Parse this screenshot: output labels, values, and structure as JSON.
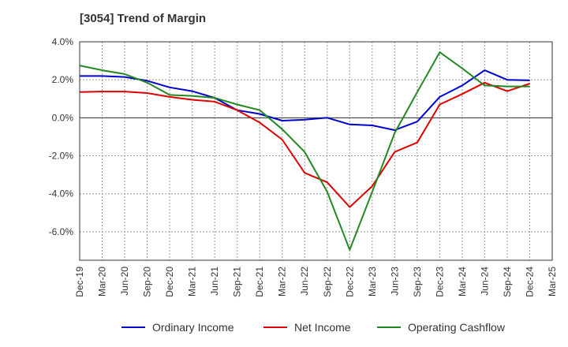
{
  "chart_data": {
    "type": "line",
    "title": "[3054]  Trend of Margin",
    "xlabel": "",
    "ylabel": "",
    "x": [
      "Dec-19",
      "Mar-20",
      "Jun-20",
      "Sep-20",
      "Dec-20",
      "Mar-21",
      "Jun-21",
      "Sep-21",
      "Dec-21",
      "Mar-22",
      "Jun-22",
      "Sep-22",
      "Dec-22",
      "Mar-23",
      "Jun-23",
      "Sep-23",
      "Dec-23",
      "Mar-24",
      "Jun-24",
      "Sep-24",
      "Dec-24",
      "Mar-25"
    ],
    "ylim": [
      -7.5,
      4.0
    ],
    "yticks": [
      4.0,
      2.0,
      0.0,
      -2.0,
      -4.0,
      -6.0
    ],
    "ytick_labels": [
      "4.0%",
      "2.0%",
      "0.0%",
      "-2.0%",
      "-4.0%",
      "-6.0%"
    ],
    "grid": true,
    "legend_position": "bottom",
    "series": [
      {
        "name": "Ordinary Income",
        "color": "#0000cc",
        "values": [
          2.2,
          2.2,
          2.15,
          1.95,
          1.6,
          1.4,
          1.05,
          0.4,
          0.2,
          -0.15,
          -0.1,
          0.0,
          -0.35,
          -0.4,
          -0.65,
          -0.2,
          1.1,
          1.7,
          2.5,
          2.0,
          1.97,
          null
        ]
      },
      {
        "name": "Net Income",
        "color": "#dd0000",
        "values": [
          1.35,
          1.38,
          1.38,
          1.3,
          1.1,
          0.95,
          0.85,
          0.4,
          -0.25,
          -1.15,
          -2.9,
          -3.4,
          -4.7,
          -3.6,
          -1.8,
          -1.3,
          0.7,
          1.25,
          1.85,
          1.4,
          1.8,
          null
        ]
      },
      {
        "name": "Operating Cashflow",
        "color": "#228822",
        "values": [
          2.75,
          2.5,
          2.3,
          1.85,
          1.2,
          1.15,
          1.05,
          0.7,
          0.4,
          -0.6,
          -1.8,
          -3.9,
          -6.95,
          -3.9,
          -0.8,
          1.35,
          3.45,
          2.6,
          1.7,
          1.65,
          1.65,
          null
        ]
      }
    ]
  }
}
